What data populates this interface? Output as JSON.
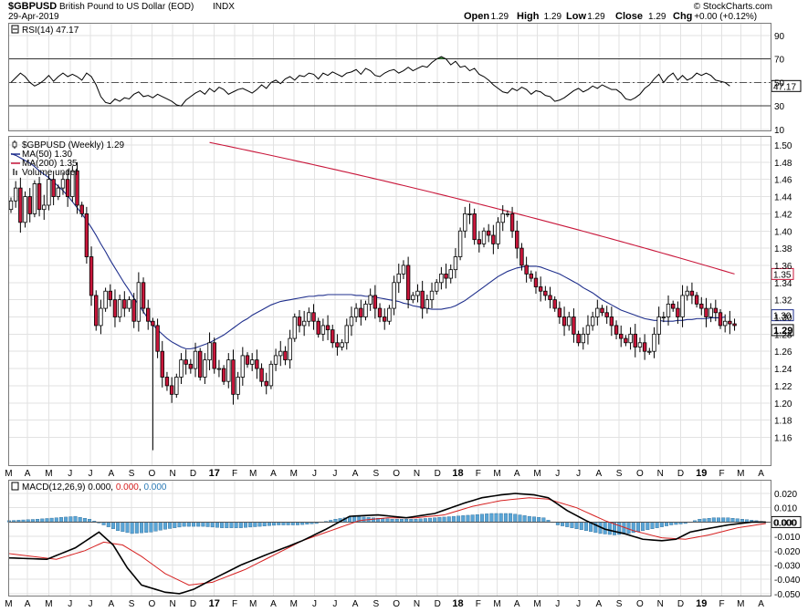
{
  "header": {
    "symbol": "$GBPUSD",
    "name": "British Pound to US Dollar (EOD)",
    "exchange": "INDX",
    "date": "29-Apr-2019",
    "brand": "© StockCharts.com",
    "quote": [
      {
        "label": "Open",
        "value": "1.29"
      },
      {
        "label": "High",
        "value": "1.29"
      },
      {
        "label": "Low",
        "value": "1.29"
      },
      {
        "label": "Close",
        "value": "1.29"
      },
      {
        "label": "Chg",
        "value": "+0.00 (+0.12%)"
      }
    ],
    "chg_color": "#1a7a1a"
  },
  "colors": {
    "up": "#ffffff",
    "down": "#c8163a",
    "candle_line": "#000000",
    "ma50": "#1f2f8c",
    "ma200": "#c8163a",
    "rsi_line": "#000000",
    "macd_line": "#000000",
    "signal_line": "#d62020",
    "hist": "#5aa5d6",
    "oversold": "#c8163a",
    "overbought": "#1a7a1a"
  },
  "chart_data": [
    {
      "type": "line",
      "panel": "RSI",
      "title": "RSI(14) 47.17",
      "label": "RSI(14)",
      "value": "47.17",
      "ylim": [
        10,
        100
      ],
      "yticks": [
        "90",
        "70",
        "50",
        "30",
        "10"
      ],
      "levels": [
        70,
        50,
        30
      ],
      "last_label": "47.17",
      "x": "weeks 0-152 (Apr 2016 - Apr 2019)",
      "values": [
        50,
        54,
        58,
        55,
        50,
        47,
        49,
        52,
        56,
        51,
        55,
        58,
        55,
        57,
        55,
        52,
        58,
        55,
        48,
        38,
        33,
        32,
        36,
        34,
        37,
        36,
        40,
        42,
        38,
        39,
        37,
        40,
        38,
        36,
        34,
        31,
        30,
        35,
        38,
        41,
        43,
        40,
        45,
        42,
        46,
        44,
        40,
        42,
        44,
        45,
        43,
        41,
        44,
        48,
        45,
        50,
        52,
        49,
        53,
        55,
        52,
        56,
        55,
        58,
        57,
        53,
        58,
        56,
        59,
        57,
        55,
        58,
        59,
        61,
        57,
        62,
        60,
        56,
        55,
        58,
        60,
        61,
        58,
        60,
        63,
        60,
        62,
        64,
        63,
        67,
        70,
        72,
        70,
        65,
        68,
        63,
        64,
        60,
        62,
        57,
        55,
        52,
        48,
        45,
        42,
        41,
        45,
        43,
        46,
        44,
        40,
        43,
        42,
        39,
        38,
        34,
        35,
        37,
        40,
        43,
        45,
        42,
        44,
        47,
        45,
        48,
        46,
        44,
        44,
        41,
        36,
        35,
        37,
        40,
        45,
        48,
        53,
        57,
        50,
        55,
        58,
        52,
        56,
        52,
        54,
        58,
        56,
        58,
        56,
        52,
        51,
        50,
        47
      ]
    },
    {
      "type": "candlestick",
      "panel": "price",
      "title": "$GBPUSD (Weekly) 1.29",
      "ylim": [
        1.13,
        1.51
      ],
      "yticks": [
        "1.50",
        "1.48",
        "1.46",
        "1.44",
        "1.42",
        "1.40",
        "1.38",
        "1.36",
        "1.34",
        "1.32",
        "1.30",
        "1.28",
        "1.26",
        "1.24",
        "1.22",
        "1.20",
        "1.18",
        "1.16"
      ],
      "legend": [
        {
          "label": "$GBPUSD (Weekly) 1.29",
          "kind": "candle"
        },
        {
          "label": "MA(50) 1.30",
          "kind": "ma50"
        },
        {
          "label": "MA(200) 1.35",
          "kind": "ma200"
        },
        {
          "label": "Volume undef",
          "kind": "volume"
        }
      ],
      "close": [
        1.435,
        1.45,
        1.41,
        1.44,
        1.42,
        1.455,
        1.425,
        1.43,
        1.46,
        1.44,
        1.45,
        1.46,
        1.44,
        1.47,
        1.43,
        1.42,
        1.37,
        1.325,
        1.29,
        1.31,
        1.33,
        1.32,
        1.3,
        1.32,
        1.31,
        1.32,
        1.295,
        1.34,
        1.31,
        1.295,
        1.29,
        1.26,
        1.23,
        1.22,
        1.21,
        1.23,
        1.25,
        1.245,
        1.24,
        1.26,
        1.23,
        1.25,
        1.27,
        1.24,
        1.24,
        1.225,
        1.25,
        1.21,
        1.23,
        1.255,
        1.245,
        1.25,
        1.24,
        1.225,
        1.22,
        1.245,
        1.255,
        1.26,
        1.25,
        1.275,
        1.3,
        1.29,
        1.295,
        1.305,
        1.295,
        1.28,
        1.29,
        1.285,
        1.27,
        1.265,
        1.27,
        1.29,
        1.3,
        1.31,
        1.3,
        1.315,
        1.325,
        1.31,
        1.3,
        1.295,
        1.31,
        1.34,
        1.35,
        1.36,
        1.32,
        1.325,
        1.33,
        1.31,
        1.32,
        1.33,
        1.34,
        1.35,
        1.345,
        1.355,
        1.37,
        1.4,
        1.42,
        1.42,
        1.39,
        1.385,
        1.4,
        1.395,
        1.385,
        1.41,
        1.42,
        1.42,
        1.4,
        1.38,
        1.36,
        1.35,
        1.345,
        1.335,
        1.33,
        1.325,
        1.32,
        1.31,
        1.3,
        1.29,
        1.3,
        1.28,
        1.27,
        1.28,
        1.29,
        1.3,
        1.31,
        1.305,
        1.3,
        1.29,
        1.28,
        1.275,
        1.27,
        1.28,
        1.265,
        1.27,
        1.26,
        1.26,
        1.28,
        1.3,
        1.3,
        1.315,
        1.31,
        1.3,
        1.325,
        1.33,
        1.325,
        1.315,
        1.31,
        1.3,
        1.31,
        1.305,
        1.29,
        1.295,
        1.292,
        1.29
      ],
      "ma50": [
        1.49,
        1.488,
        1.485,
        1.482,
        1.479,
        1.475,
        1.47,
        1.466,
        1.462,
        1.457,
        1.452,
        1.447,
        1.441,
        1.434,
        1.427,
        1.42,
        1.412,
        1.404,
        1.395,
        1.385,
        1.376,
        1.366,
        1.357,
        1.348,
        1.339,
        1.331,
        1.322,
        1.314,
        1.306,
        1.298,
        1.291,
        1.285,
        1.28,
        1.275,
        1.271,
        1.268,
        1.265,
        1.263,
        1.263,
        1.264,
        1.266,
        1.268,
        1.27,
        1.273,
        1.276,
        1.279,
        1.283,
        1.287,
        1.291,
        1.295,
        1.298,
        1.302,
        1.305,
        1.308,
        1.311,
        1.314,
        1.316,
        1.318,
        1.319,
        1.32,
        1.321,
        1.322,
        1.323,
        1.324,
        1.324,
        1.325,
        1.325,
        1.326,
        1.326,
        1.326,
        1.326,
        1.326,
        1.326,
        1.325,
        1.325,
        1.324,
        1.324,
        1.323,
        1.322,
        1.321,
        1.32,
        1.319,
        1.318,
        1.316,
        1.315,
        1.313,
        1.312,
        1.311,
        1.31,
        1.309,
        1.309,
        1.309,
        1.31,
        1.311,
        1.313,
        1.316,
        1.319,
        1.323,
        1.327,
        1.331,
        1.335,
        1.339,
        1.343,
        1.347,
        1.35,
        1.353,
        1.355,
        1.357,
        1.358,
        1.359,
        1.359,
        1.359,
        1.358,
        1.356,
        1.354,
        1.352,
        1.35,
        1.347,
        1.344,
        1.341,
        1.338,
        1.334,
        1.331,
        1.328,
        1.324,
        1.32,
        1.317,
        1.314,
        1.311,
        1.308,
        1.306,
        1.304,
        1.302,
        1.3,
        1.298,
        1.297,
        1.296,
        1.296,
        1.295,
        1.295,
        1.295,
        1.296,
        1.296,
        1.297,
        1.297,
        1.298,
        1.298,
        1.298,
        1.299,
        1.299,
        1.299,
        1.3
      ],
      "ma200_start_week": 42,
      "ma200_start_value": 1.503,
      "ma200_end_value": 1.35,
      "last_labels": {
        "ma200": "1.35",
        "ma50": "1.30",
        "close": "1.29"
      }
    },
    {
      "type": "line",
      "panel": "MACD",
      "title": "MACD(12,26,9) 0.000, 0.000, 0.000",
      "label": "MACD(12,26,9)",
      "value1": "0.000",
      "value2": "0.000",
      "value3": "0.000",
      "ylim": [
        -0.055,
        0.028
      ],
      "yticks": [
        "0.020",
        "0.010",
        "0.000",
        "-0.010",
        "-0.020",
        "-0.030",
        "-0.040",
        "-0.050"
      ],
      "last_label": "0.000",
      "macd_keys": [
        [
          0,
          -0.025
        ],
        [
          8,
          -0.026
        ],
        [
          14,
          -0.018
        ],
        [
          19,
          -0.007
        ],
        [
          22,
          -0.016
        ],
        [
          25,
          -0.032
        ],
        [
          28,
          -0.044
        ],
        [
          33,
          -0.049
        ],
        [
          36,
          -0.05
        ],
        [
          39,
          -0.047
        ],
        [
          43,
          -0.04
        ],
        [
          49,
          -0.03
        ],
        [
          55,
          -0.022
        ],
        [
          59,
          -0.017
        ],
        [
          62,
          -0.013
        ],
        [
          67,
          -0.005
        ],
        [
          72,
          0.004
        ],
        [
          78,
          0.005
        ],
        [
          84,
          0.003
        ],
        [
          90,
          0.006
        ],
        [
          96,
          0.013
        ],
        [
          100,
          0.017
        ],
        [
          104,
          0.019
        ],
        [
          107,
          0.02
        ],
        [
          111,
          0.019
        ],
        [
          114,
          0.017
        ],
        [
          118,
          0.008
        ],
        [
          122,
          0.001
        ],
        [
          126,
          -0.005
        ],
        [
          130,
          -0.008
        ],
        [
          134,
          -0.012
        ],
        [
          138,
          -0.013
        ],
        [
          141,
          -0.012
        ],
        [
          144,
          -0.007
        ],
        [
          147,
          -0.005
        ],
        [
          152,
          -0.002
        ],
        [
          157,
          0.0
        ],
        [
          160,
          0.0
        ]
      ],
      "signal_keys": [
        [
          0,
          -0.022
        ],
        [
          10,
          -0.026
        ],
        [
          16,
          -0.02
        ],
        [
          20,
          -0.014
        ],
        [
          24,
          -0.016
        ],
        [
          28,
          -0.024
        ],
        [
          33,
          -0.036
        ],
        [
          38,
          -0.044
        ],
        [
          43,
          -0.042
        ],
        [
          50,
          -0.033
        ],
        [
          56,
          -0.023
        ],
        [
          62,
          -0.013
        ],
        [
          68,
          -0.006
        ],
        [
          74,
          0.001
        ],
        [
          80,
          0.003
        ],
        [
          86,
          0.003
        ],
        [
          92,
          0.005
        ],
        [
          98,
          0.011
        ],
        [
          104,
          0.015
        ],
        [
          110,
          0.017
        ],
        [
          114,
          0.016
        ],
        [
          120,
          0.01
        ],
        [
          126,
          0.001
        ],
        [
          132,
          -0.006
        ],
        [
          138,
          -0.011
        ],
        [
          143,
          -0.012
        ],
        [
          148,
          -0.009
        ],
        [
          154,
          -0.004
        ],
        [
          160,
          -0.001
        ]
      ],
      "hist_keys": [
        [
          0,
          0.001
        ],
        [
          6,
          0.002
        ],
        [
          10,
          0.003
        ],
        [
          14,
          0.004
        ],
        [
          17,
          0.002
        ],
        [
          20,
          -0.002
        ],
        [
          23,
          -0.006
        ],
        [
          26,
          -0.008
        ],
        [
          30,
          -0.007
        ],
        [
          33,
          -0.005
        ],
        [
          37,
          -0.003
        ],
        [
          41,
          -0.003
        ],
        [
          45,
          -0.004
        ],
        [
          49,
          -0.004
        ],
        [
          53,
          -0.003
        ],
        [
          57,
          -0.002
        ],
        [
          61,
          -0.002
        ],
        [
          65,
          -0.001
        ],
        [
          69,
          0.002
        ],
        [
          73,
          0.004
        ],
        [
          77,
          0.003
        ],
        [
          81,
          0.002
        ],
        [
          86,
          0.002
        ],
        [
          90,
          0.003
        ],
        [
          94,
          0.004
        ],
        [
          98,
          0.005
        ],
        [
          102,
          0.006
        ],
        [
          106,
          0.006
        ],
        [
          110,
          0.004
        ],
        [
          113,
          0.003
        ],
        [
          116,
          -0.002
        ],
        [
          119,
          -0.004
        ],
        [
          122,
          -0.006
        ],
        [
          125,
          -0.008
        ],
        [
          128,
          -0.009
        ],
        [
          131,
          -0.008
        ],
        [
          134,
          -0.006
        ],
        [
          137,
          -0.004
        ],
        [
          140,
          -0.002
        ],
        [
          143,
          -0.001
        ],
        [
          146,
          0.002
        ],
        [
          149,
          0.003
        ],
        [
          152,
          0.003
        ],
        [
          155,
          0.002
        ],
        [
          158,
          0.001
        ],
        [
          160,
          0.0
        ]
      ]
    }
  ],
  "x_axis": {
    "labels": [
      {
        "text": "M",
        "week": -0.5,
        "bold": false
      },
      {
        "text": "A",
        "week": 3.5,
        "bold": false
      },
      {
        "text": "M",
        "week": 8,
        "bold": false
      },
      {
        "text": "J",
        "week": 12.5,
        "bold": false
      },
      {
        "text": "J",
        "week": 16.8,
        "bold": false
      },
      {
        "text": "A",
        "week": 21.2,
        "bold": false
      },
      {
        "text": "S",
        "week": 25.5,
        "bold": false
      },
      {
        "text": "O",
        "week": 29.8,
        "bold": false
      },
      {
        "text": "N",
        "week": 34.2,
        "bold": false
      },
      {
        "text": "D",
        "week": 38.5,
        "bold": false
      },
      {
        "text": "17",
        "week": 43,
        "bold": true
      },
      {
        "text": "F",
        "week": 47.3,
        "bold": false
      },
      {
        "text": "M",
        "week": 51.2,
        "bold": false
      },
      {
        "text": "A",
        "week": 55.5,
        "bold": false
      },
      {
        "text": "M",
        "week": 59.8,
        "bold": false
      },
      {
        "text": "J",
        "week": 64.2,
        "bold": false
      },
      {
        "text": "J",
        "week": 68.5,
        "bold": false
      },
      {
        "text": "A",
        "week": 72.8,
        "bold": false
      },
      {
        "text": "S",
        "week": 77.2,
        "bold": false
      },
      {
        "text": "O",
        "week": 81.5,
        "bold": false
      },
      {
        "text": "N",
        "week": 85.8,
        "bold": false
      },
      {
        "text": "D",
        "week": 90.2,
        "bold": false
      },
      {
        "text": "18",
        "week": 94.5,
        "bold": true
      },
      {
        "text": "F",
        "week": 98.8,
        "bold": false
      },
      {
        "text": "M",
        "week": 102.8,
        "bold": false
      },
      {
        "text": "A",
        "week": 107,
        "bold": false
      },
      {
        "text": "M",
        "week": 111.3,
        "bold": false
      },
      {
        "text": "J",
        "week": 115.6,
        "bold": false
      },
      {
        "text": "J",
        "week": 120,
        "bold": false
      },
      {
        "text": "A",
        "week": 124.3,
        "bold": false
      },
      {
        "text": "S",
        "week": 128.6,
        "bold": false
      },
      {
        "text": "O",
        "week": 133,
        "bold": false
      },
      {
        "text": "N",
        "week": 137.3,
        "bold": false
      },
      {
        "text": "D",
        "week": 141.6,
        "bold": false
      },
      {
        "text": "19",
        "week": 146,
        "bold": true
      },
      {
        "text": "F",
        "week": 150.3,
        "bold": false
      },
      {
        "text": "M",
        "week": 154.3,
        "bold": false
      },
      {
        "text": "A",
        "week": 158.6,
        "bold": false
      }
    ]
  }
}
